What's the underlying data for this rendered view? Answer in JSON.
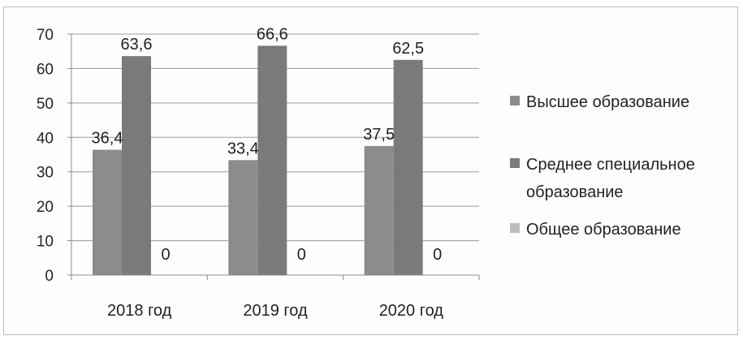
{
  "chart_data": {
    "type": "bar",
    "categories": [
      "2018 год",
      "2019 год",
      "2020 год"
    ],
    "series": [
      {
        "name": "Высшее образование",
        "values": [
          36.4,
          33.4,
          37.5
        ],
        "labels": [
          "36,4",
          "33,4",
          "37,5"
        ],
        "color": "#8c8c8c"
      },
      {
        "name": "Среднее специальное образование",
        "values": [
          63.6,
          66.6,
          62.5
        ],
        "labels": [
          "63,6",
          "66,6",
          "62,5"
        ],
        "color": "#7a7a7a"
      },
      {
        "name": "Общее образование",
        "values": [
          0,
          0,
          0
        ],
        "labels": [
          "0",
          "0",
          "0"
        ],
        "color": "#bdbdbd"
      }
    ],
    "ylim": [
      0,
      70
    ],
    "yticks": [
      "0",
      "10",
      "20",
      "30",
      "40",
      "50",
      "60",
      "70"
    ],
    "grid": true,
    "legend_position": "right",
    "legend": [
      "Высшее образование",
      "Среднее специальное",
      "образование",
      "Общее образование"
    ]
  }
}
